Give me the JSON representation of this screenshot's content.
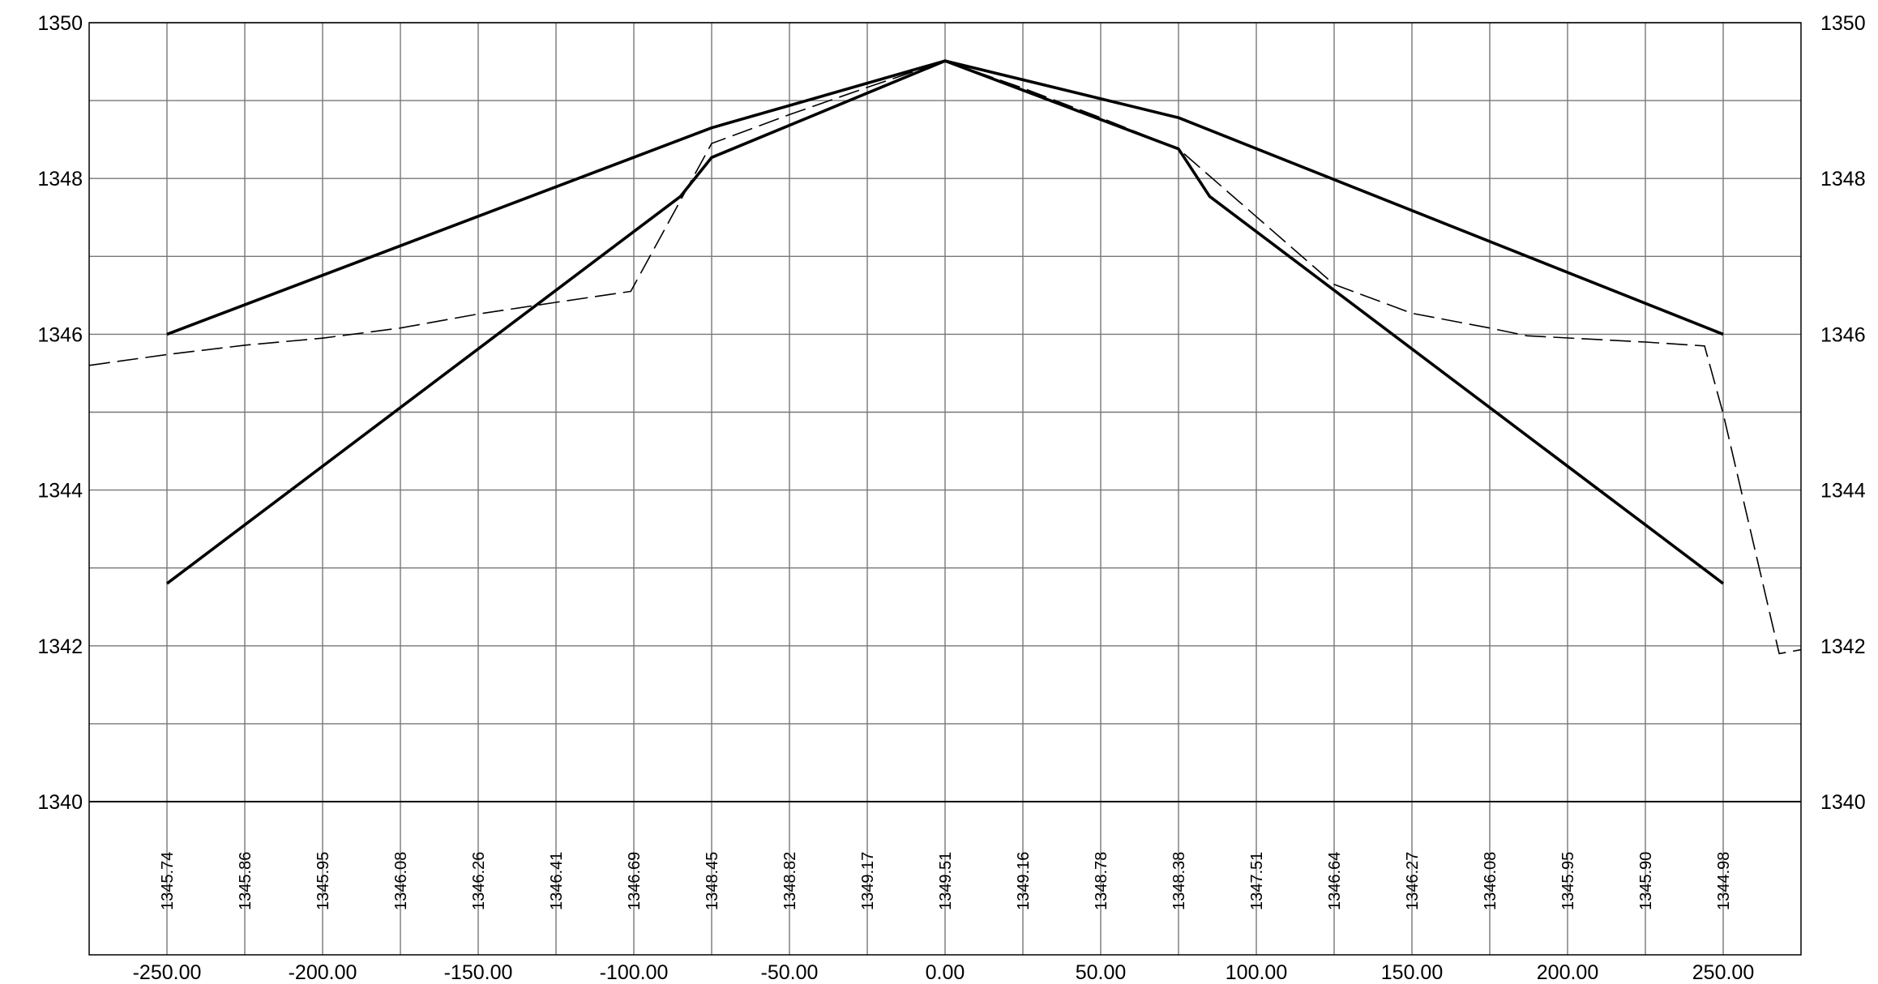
{
  "chart_data": {
    "type": "line",
    "title": "",
    "xlabel": "",
    "ylabel": "",
    "xlim": [
      -275,
      275
    ],
    "ylim": [
      1340,
      1350
    ],
    "grid": true,
    "x_ticks": [
      -250,
      -225,
      -200,
      -175,
      -150,
      -125,
      -100,
      -75,
      -50,
      -25,
      0,
      25,
      50,
      75,
      100,
      125,
      150,
      175,
      200,
      225,
      250
    ],
    "x_tick_labels": [
      "-250.00",
      "-200.00",
      "-150.00",
      "-100.00",
      "-50.00",
      "0.00",
      "50.00",
      "100.00",
      "150.00",
      "200.00",
      "250.00"
    ],
    "x_tick_label_values": [
      -250,
      -200,
      -150,
      -100,
      -50,
      0,
      50,
      100,
      150,
      200,
      250
    ],
    "y_ticks": [
      1340,
      1341,
      1342,
      1343,
      1344,
      1345,
      1346,
      1347,
      1348,
      1349,
      1350
    ],
    "y_tick_labels": [
      "1340",
      "1342",
      "1344",
      "1346",
      "1348",
      "1350"
    ],
    "y_tick_label_values": [
      1340,
      1342,
      1344,
      1346,
      1348,
      1350
    ],
    "series": [
      {
        "style": "solid",
        "x": [
          -250,
          -75,
          0,
          75,
          250
        ],
        "y": [
          1346.0,
          1348.65,
          1349.51,
          1348.78,
          1346.0
        ]
      },
      {
        "style": "solid",
        "x": [
          -250,
          -85,
          -75,
          0,
          75,
          85,
          250
        ],
        "y": [
          1342.8,
          1347.77,
          1348.27,
          1349.51,
          1348.38,
          1347.77,
          1342.8
        ]
      },
      {
        "style": "dashed",
        "x": [
          -275,
          -250,
          -225,
          -200,
          -175,
          -150,
          -125,
          -101,
          -75,
          -50,
          -25,
          0,
          25,
          50,
          75,
          100,
          125,
          150,
          175,
          187,
          225,
          244,
          250,
          268,
          275
        ],
        "y": [
          1345.6,
          1345.74,
          1345.86,
          1345.95,
          1346.08,
          1346.26,
          1346.41,
          1346.55,
          1348.45,
          1348.82,
          1349.17,
          1349.51,
          1349.16,
          1348.78,
          1348.38,
          1347.51,
          1346.64,
          1346.27,
          1346.08,
          1345.98,
          1345.9,
          1345.85,
          1344.98,
          1341.9,
          1341.95
        ]
      }
    ],
    "elevation_labels": {
      "x": [
        -250,
        -225,
        -200,
        -175,
        -150,
        -125,
        -100,
        -75,
        -50,
        -25,
        0,
        25,
        50,
        75,
        100,
        125,
        150,
        175,
        200,
        225,
        250
      ],
      "values": [
        "1345.74",
        "1345.86",
        "1345.95",
        "1346.08",
        "1346.26",
        "1346.41",
        "1346.69",
        "1348.45",
        "1348.82",
        "1349.17",
        "1349.51",
        "1349.16",
        "1348.78",
        "1348.38",
        "1347.51",
        "1346.64",
        "1346.27",
        "1346.08",
        "1345.95",
        "1345.90",
        "1344.98"
      ]
    }
  }
}
